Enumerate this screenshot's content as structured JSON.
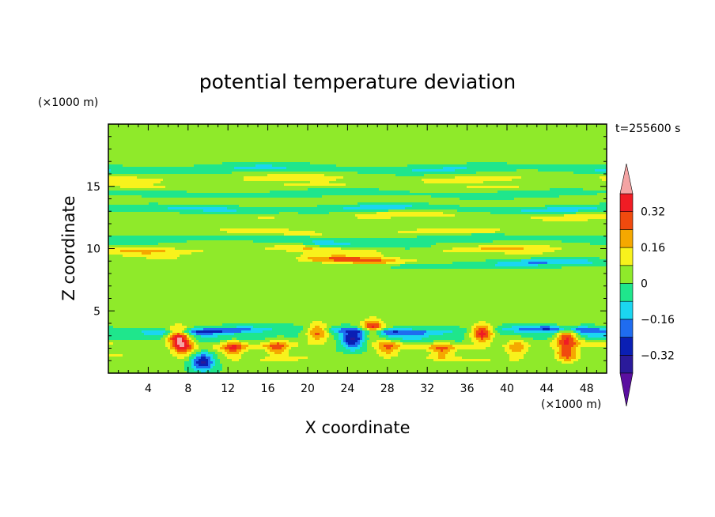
{
  "chart_data": {
    "type": "heatmap",
    "title": "potential temperature deviation",
    "xlabel": "X coordinate",
    "ylabel": "Z coordinate",
    "x_unit": "(×1000 m)",
    "y_unit": "(×1000 m)",
    "time_label": "t=255600 s",
    "xlim": [
      0,
      50
    ],
    "ylim": [
      0,
      20
    ],
    "x_ticks": [
      4,
      8,
      12,
      16,
      20,
      24,
      28,
      32,
      36,
      40,
      44,
      48
    ],
    "y_ticks": [
      5,
      10,
      15
    ],
    "colorbar": {
      "levels": [
        -0.4,
        -0.32,
        -0.24,
        -0.16,
        -0.08,
        0,
        0.08,
        0.16,
        0.24,
        0.32,
        0.4
      ],
      "labels": [
        {
          "value": 0.32,
          "text": "0.32"
        },
        {
          "value": 0.16,
          "text": "0.16"
        },
        {
          "value": 0,
          "text": "0"
        },
        {
          "value": -0.16,
          "text": "−0.16"
        },
        {
          "value": -0.32,
          "text": "−0.32"
        }
      ],
      "colors": [
        "#5a0fa0",
        "#2a1a9a",
        "#0a1fb4",
        "#1f6cf0",
        "#1bd6f0",
        "#1fe68c",
        "#8fea2a",
        "#f8f21c",
        "#f5a800",
        "#f04a0e",
        "#f01c24",
        "#f4a4a4"
      ],
      "extend": "both"
    },
    "background_value": 0.01,
    "features": [
      {
        "kind": "band",
        "z": 16.4,
        "value": -0.11,
        "x_from": 0,
        "x_to": 50
      },
      {
        "kind": "band",
        "z": 15.6,
        "value": 0.14,
        "x_from": 0,
        "x_to": 50
      },
      {
        "kind": "band",
        "z": 15.0,
        "value": 0.09,
        "x_from": 0,
        "x_to": 50
      },
      {
        "kind": "band",
        "z": 14.4,
        "value": -0.08,
        "x_from": 0,
        "x_to": 50
      },
      {
        "kind": "band",
        "z": 13.8,
        "value": 0.06,
        "x_from": 0,
        "x_to": 50
      },
      {
        "kind": "band",
        "z": 13.2,
        "value": -0.13,
        "x_from": 0,
        "x_to": 50
      },
      {
        "kind": "band",
        "z": 12.6,
        "value": 0.14,
        "x_from": 16,
        "x_to": 50
      },
      {
        "kind": "band",
        "z": 12.0,
        "value": 0.05,
        "x_from": 0,
        "x_to": 50
      },
      {
        "kind": "band",
        "z": 11.3,
        "value": 0.15,
        "x_from": 6,
        "x_to": 42
      },
      {
        "kind": "band",
        "z": 10.8,
        "value": -0.09,
        "x_from": 0,
        "x_to": 50
      },
      {
        "kind": "band",
        "z": 10.3,
        "value": -0.18,
        "x_from": 22,
        "x_to": 30
      },
      {
        "kind": "band",
        "z": 9.9,
        "value": 0.17,
        "x_from": 0,
        "x_to": 50
      },
      {
        "kind": "band",
        "z": 9.4,
        "value": 0.07,
        "x_from": 0,
        "x_to": 50
      },
      {
        "kind": "band",
        "z": 9.0,
        "value": 0.28,
        "x_from": 20,
        "x_to": 32
      },
      {
        "kind": "band",
        "z": 8.8,
        "value": -0.18,
        "x_from": 30,
        "x_to": 50
      },
      {
        "kind": "band",
        "z": 3.4,
        "value": -0.28,
        "x_from": 0,
        "x_to": 50
      },
      {
        "kind": "band",
        "z": 2.9,
        "value": -0.09,
        "x_from": 0,
        "x_to": 50
      },
      {
        "kind": "band",
        "z": 2.2,
        "value": 0.12,
        "x_from": 0,
        "x_to": 50
      },
      {
        "kind": "band",
        "z": 1.2,
        "value": 0.08,
        "x_from": 0,
        "x_to": 50
      },
      {
        "kind": "blob",
        "x": 7.0,
        "z": 3.0,
        "value": 0.42
      },
      {
        "kind": "blob",
        "x": 7.5,
        "z": 2.1,
        "value": 0.3
      },
      {
        "kind": "blob",
        "x": 9.5,
        "z": 0.9,
        "value": -0.35
      },
      {
        "kind": "blob",
        "x": 12.5,
        "z": 2.0,
        "value": 0.24
      },
      {
        "kind": "blob",
        "x": 17.0,
        "z": 2.0,
        "value": 0.22
      },
      {
        "kind": "blob",
        "x": 21.0,
        "z": 3.3,
        "value": 0.3
      },
      {
        "kind": "blob",
        "x": 24.5,
        "z": 2.6,
        "value": -0.34
      },
      {
        "kind": "blob",
        "x": 26.5,
        "z": 3.6,
        "value": 0.36
      },
      {
        "kind": "blob",
        "x": 28.0,
        "z": 2.0,
        "value": 0.2
      },
      {
        "kind": "blob",
        "x": 33.5,
        "z": 1.8,
        "value": 0.18
      },
      {
        "kind": "blob",
        "x": 37.5,
        "z": 3.2,
        "value": 0.38
      },
      {
        "kind": "blob",
        "x": 41.0,
        "z": 2.0,
        "value": 0.2
      },
      {
        "kind": "blob",
        "x": 46.0,
        "z": 3.0,
        "value": 0.36
      },
      {
        "kind": "blob",
        "x": 46.0,
        "z": 1.6,
        "value": 0.28
      },
      {
        "kind": "blob",
        "x": 8.0,
        "z": 6.5,
        "value": 0.06
      },
      {
        "kind": "blob",
        "x": 14.0,
        "z": 6.5,
        "value": 0.06
      },
      {
        "kind": "blob",
        "x": 22.0,
        "z": 6.5,
        "value": 0.06
      },
      {
        "kind": "blob",
        "x": 28.5,
        "z": 6.5,
        "value": 0.07
      },
      {
        "kind": "blob",
        "x": 47.0,
        "z": 6.5,
        "value": 0.06
      },
      {
        "kind": "blob",
        "x": 12.0,
        "z": 18.5,
        "value": 0.06
      },
      {
        "kind": "blob",
        "x": 33.0,
        "z": 18.5,
        "value": 0.06
      },
      {
        "kind": "blob",
        "x": 45.0,
        "z": 18.0,
        "value": 0.05
      }
    ]
  }
}
